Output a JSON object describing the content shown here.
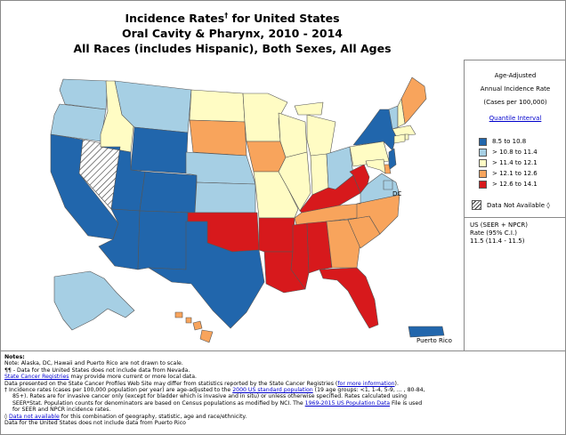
{
  "title": {
    "line1": "Incidence Rates",
    "dagger": "†",
    "line1_suffix": " for United States",
    "line2": "Oral Cavity & Pharynx, 2010 - 2014",
    "line3": "All Races (includes Hispanic), Both Sexes, All Ages"
  },
  "legend": {
    "heading1": "Age-Adjusted",
    "heading2": "Annual Incidence Rate",
    "heading3": "(Cases per 100,000)",
    "quantile_link": "Quantile Interval",
    "items": [
      {
        "label": "8.5  to  10.8",
        "color": "#2166ac"
      },
      {
        "label": "> 10.8  to  11.4",
        "color": "#a6cfe4"
      },
      {
        "label": "> 11.4  to  12.1",
        "color": "#fffcc4"
      },
      {
        "label": "> 12.1  to  12.6",
        "color": "#f8a45c"
      },
      {
        "label": "> 12.6  to  14.1",
        "color": "#d7191c"
      }
    ],
    "not_available": "Data Not Available",
    "not_available_symbol": "◊",
    "us_label": "US (SEER + NPCR)",
    "us_rate_label": "Rate (95% C.I.)",
    "us_rate_value": "11.5  (11.4 - 11.5)"
  },
  "map": {
    "labels": {
      "dc": "DC",
      "puerto_rico": "Puerto Rico"
    },
    "state_classes": {
      "WA": 1,
      "OR": 1,
      "CA": 0,
      "NV": -1,
      "ID": 2,
      "MT": 1,
      "WY": 0,
      "UT": 0,
      "AZ": 0,
      "CO": 0,
      "NM": 0,
      "ND": 2,
      "SD": 3,
      "NE": 1,
      "KS": 1,
      "OK": 4,
      "TX": 0,
      "MN": 2,
      "IA": 3,
      "MO": 2,
      "AR": 4,
      "LA": 4,
      "WI": 2,
      "IL": 2,
      "MI": 2,
      "IN": 2,
      "OH": 1,
      "KY": 4,
      "TN": 3,
      "MS": 4,
      "AL": 4,
      "GA": 3,
      "FL": 4,
      "SC": 3,
      "NC": 3,
      "VA": 1,
      "WV": 4,
      "PA": 2,
      "NY": 0,
      "VT": 1,
      "NH": 2,
      "ME": 3,
      "MA": 2,
      "RI": 2,
      "CT": 2,
      "NJ": 0,
      "DE": 3,
      "MD": 2,
      "DC": 1,
      "AK": 1,
      "HI": 3,
      "PR": 0
    }
  },
  "notes": {
    "heading": "Notes:",
    "line1": "Note: Alaska, DC, Hawaii and Puerto Rico are not drawn to scale.",
    "line2_sym": "¶¶",
    "line2": " - Data for the United States does not include data from Nevada.",
    "line3_link": "State Cancer Registries",
    "line3": " may provide more current or more local data.",
    "line4": "Data presented on the State Cancer Profiles Web Site may differ from statistics reported by the State Cancer Registries (",
    "line4_link": "for more information",
    "line4_end": ").",
    "line5_sym": "†",
    "line5a": " Incidence rates (cases per 100,000 population per year) are age-adjusted to the ",
    "line5_link": "2000 US standard population",
    "line5b": " (19 age groups: <1, 1-4, 5-9, ... , 80-84,",
    "line6": "85+). Rates are for invasive cancer only (except for bladder which is invasive and in situ) or unless otherwise specified. Rates calculated using",
    "line7a": "SEER*Stat. Population counts for denominators are based on Census populations as modified  by NCI. The ",
    "line7_link": "1969-2015 US Population Data",
    "line7b": " File is used",
    "line8": "for SEER and NPCR incidence rates.",
    "line9_sym": "◊",
    "line9_link": "Data not available",
    "line9": " for this combination of geography, statistic, age and race/ethnicity.",
    "line10": "Data for the United States does not include data from Puerto Rico"
  }
}
